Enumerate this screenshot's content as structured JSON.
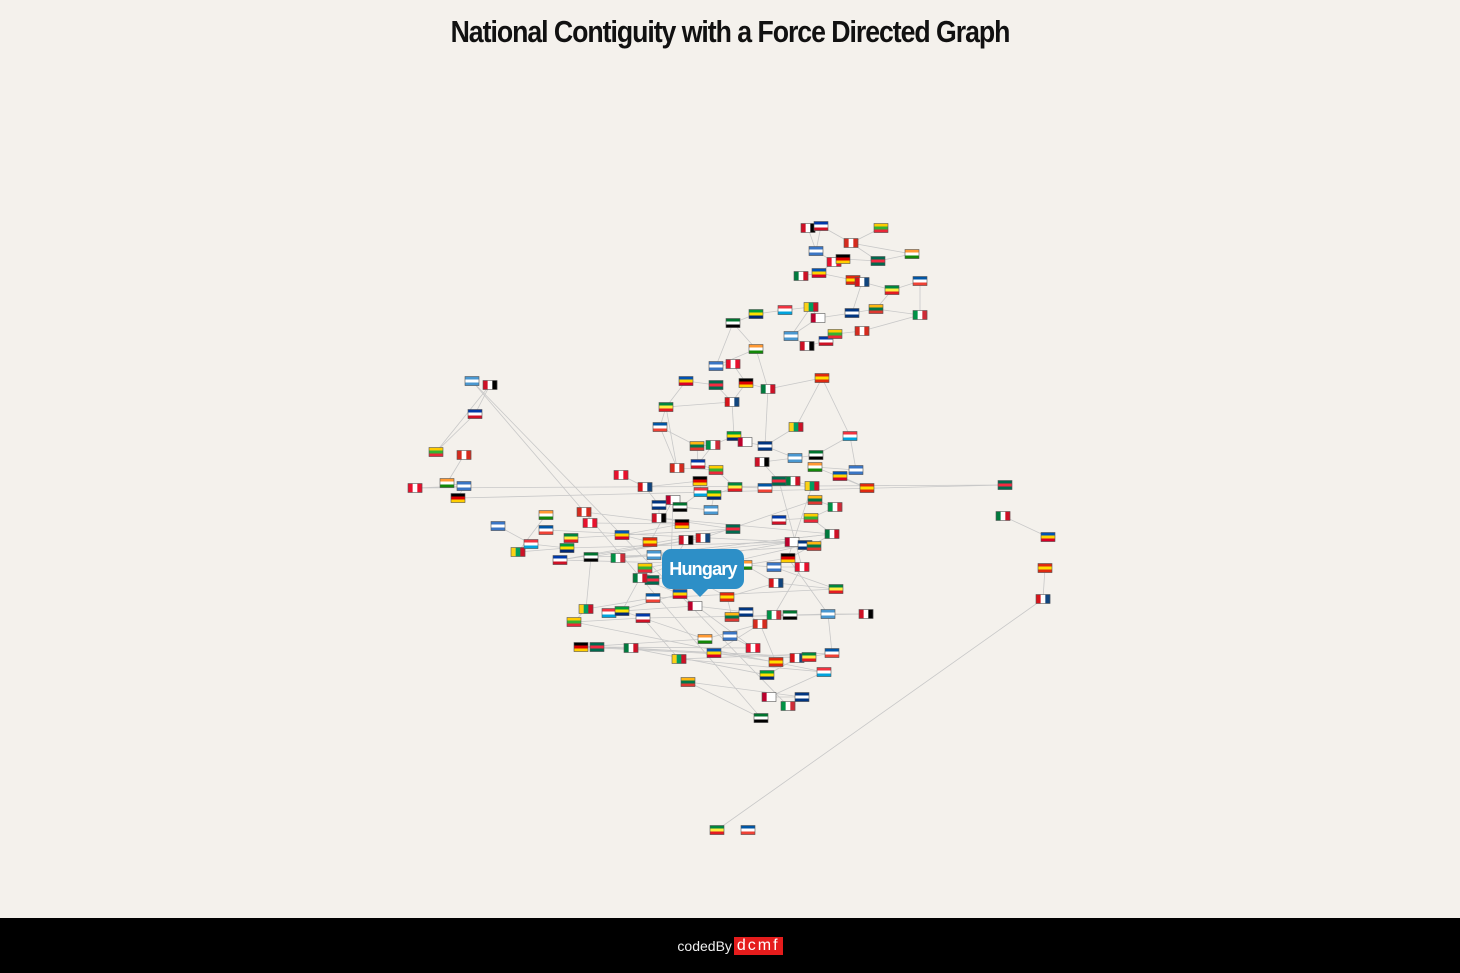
{
  "title": "National Contiguity with a Force Directed Graph",
  "tooltip": {
    "label": "Hungary"
  },
  "footer": {
    "prefix": "codedBy",
    "brand": "dcmf"
  },
  "colors": {
    "background": "#f4f1ec",
    "link": "#c8c8c8",
    "tooltip": "#2d8fc7",
    "footer": "#000000",
    "brand": "#e51c1c"
  }
}
